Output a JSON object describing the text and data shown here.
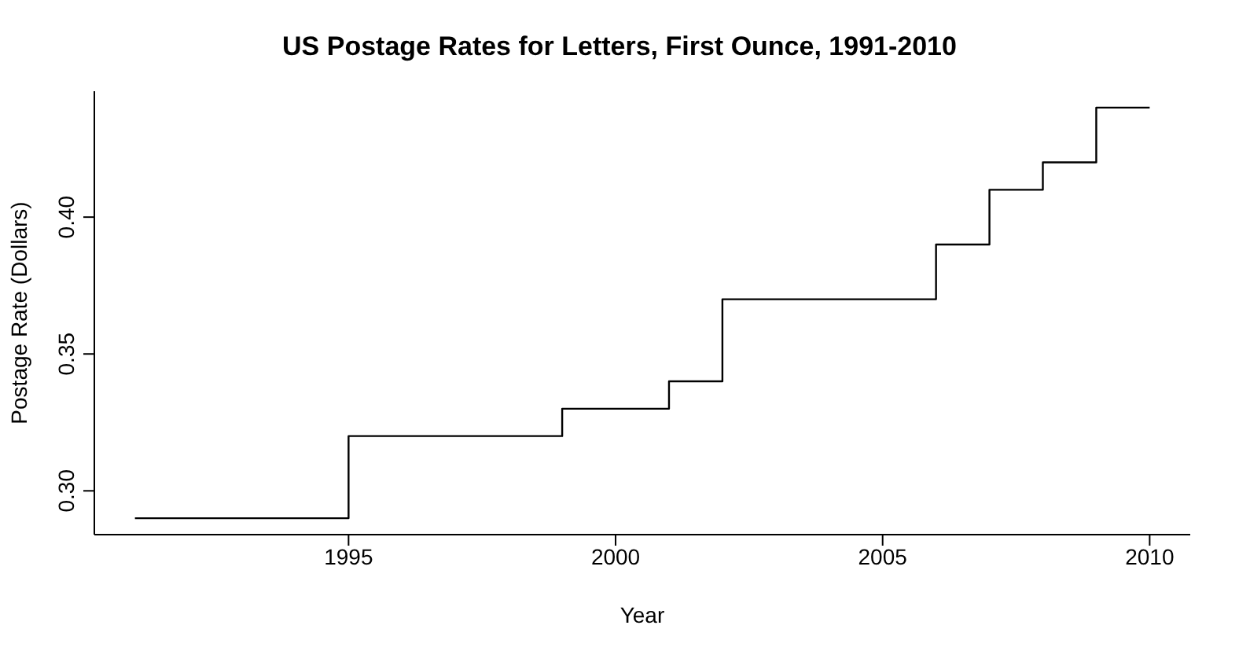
{
  "chart_data": {
    "type": "step",
    "title": "US Postage Rates for Letters, First Ounce, 1991-2010",
    "xlabel": "Year",
    "ylabel": "Postage Rate (Dollars)",
    "x": [
      1991,
      1995,
      1999,
      2001,
      2002,
      2006,
      2007,
      2008,
      2009,
      2010
    ],
    "series": [
      {
        "color": "#000000",
        "values": [
          0.29,
          0.32,
          0.33,
          0.34,
          0.37,
          0.39,
          0.41,
          0.42,
          0.44,
          0.44
        ]
      }
    ],
    "xlim": [
      1990.24,
      2010.76
    ],
    "xticks": [
      1995,
      2000,
      2005,
      2010
    ],
    "ylim": [
      0.284,
      0.446
    ],
    "yticks": [
      {
        "value": 0.3,
        "label": "0.30"
      },
      {
        "value": 0.35,
        "label": "0.35"
      },
      {
        "value": 0.4,
        "label": "0.40"
      }
    ],
    "grid": false,
    "legend": false,
    "marker": "none",
    "line_style": "solid"
  }
}
